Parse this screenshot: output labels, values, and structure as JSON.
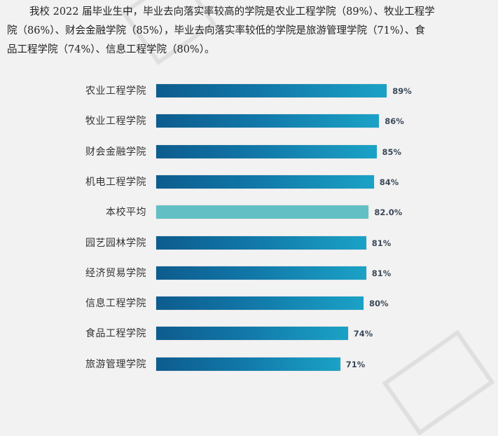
{
  "intro": {
    "line1": "我校 2022 届毕业生中，毕业去向落实率较高的学院是农业工程学院（89%）、牧业工程学",
    "line2": "院（86%）、财会金融学院（85%），毕业去向落实率较低的学院是旅游管理学院（71%）、食",
    "line3": "品工程学院（74%）、信息工程学院（80%）。"
  },
  "colors": {
    "bar_gradient_start": "#0d5c8e",
    "bar_gradient_end": "#1ba2c6",
    "average_bar": "#62c0c4",
    "value_text": "#3c4a5a"
  },
  "chart_data": {
    "type": "bar",
    "orientation": "horizontal",
    "title": "",
    "xlabel": "",
    "ylabel": "",
    "categories": [
      "农业工程学院",
      "牧业工程学院",
      "财会金融学院",
      "机电工程学院",
      "本校平均",
      "园艺园林学院",
      "经济贸易学院",
      "信息工程学院",
      "食品工程学院",
      "旅游管理学院"
    ],
    "values": [
      89,
      86,
      85,
      84,
      82.0,
      81,
      81,
      80,
      74,
      71
    ],
    "value_labels": [
      "89%",
      "86%",
      "85%",
      "84%",
      "82.0%",
      "81%",
      "81%",
      "80%",
      "74%",
      "71%"
    ],
    "highlight": "本校平均",
    "grid": false,
    "legend": "none",
    "unit": "%"
  }
}
